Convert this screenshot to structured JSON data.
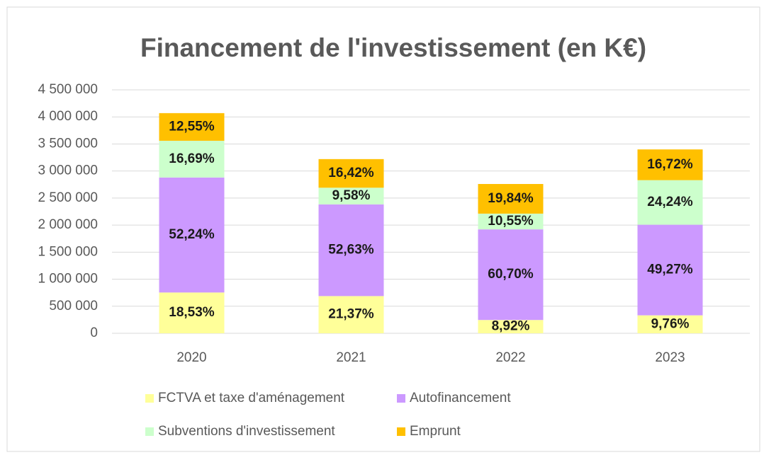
{
  "chart_data": {
    "type": "stacked_bar",
    "title": "Financement de l'investissement (en K€)",
    "categories": [
      "2020",
      "2021",
      "2022",
      "2023"
    ],
    "series": [
      {
        "name": "FCTVA et taxe d'aménagement",
        "color": "#ffff99",
        "values": [
          754000,
          688000,
          246000,
          332000
        ],
        "value_labels": [
          "18,53%",
          "21,37%",
          "8,92%",
          "9,76%"
        ]
      },
      {
        "name": "Autofinancement",
        "color": "#cc99ff",
        "values": [
          2126000,
          1695000,
          1675000,
          1675000
        ],
        "value_labels": [
          "52,24%",
          "52,63%",
          "60,70%",
          "49,27%"
        ]
      },
      {
        "name": "Subventions d'investissement",
        "color": "#ccffcc",
        "values": [
          679000,
          308000,
          291000,
          824000
        ],
        "value_labels": [
          "16,69%",
          "9,58%",
          "10,55%",
          "24,24%"
        ]
      },
      {
        "name": "Emprunt",
        "color": "#ffc000",
        "values": [
          511000,
          529000,
          548000,
          568000
        ],
        "value_labels": [
          "12,55%",
          "16,42%",
          "19,84%",
          "16,72%"
        ]
      }
    ],
    "ylim": [
      0,
      4500000
    ],
    "yticks": [
      0,
      {
        "value": 500000,
        "label": "500 000"
      },
      {
        "value": 1000000,
        "label": "1 000 000"
      },
      {
        "value": 1500000,
        "label": "1 500 000"
      },
      {
        "value": 2000000,
        "label": "2 000 000"
      },
      {
        "value": 2500000,
        "label": "2 500 000"
      },
      {
        "value": 3000000,
        "label": "3 000 000"
      },
      {
        "value": 3500000,
        "label": "3 500 000"
      },
      {
        "value": 4000000,
        "label": "4 000 000"
      },
      {
        "value": 4500000,
        "label": "4 500 000"
      }
    ],
    "grid": true,
    "legend": "bottom"
  }
}
